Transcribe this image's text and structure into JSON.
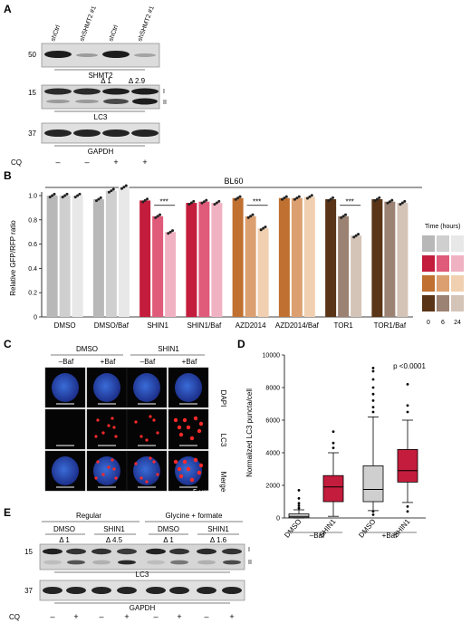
{
  "panels": {
    "A": {
      "label": "A",
      "lane_labels": [
        "shCtrl",
        "shSHMT2 #1",
        "shCtrl",
        "shSHMT2 #1"
      ],
      "marker_shmt2": "50",
      "marker_lc3": "15",
      "marker_gapdh": "37",
      "blot_shmt2": "SHMT2",
      "blot_lc3": "LC3",
      "blot_gapdh": "GAPDH",
      "delta_1": "Δ 1",
      "delta_2": "Δ 2.9",
      "band_I": "I",
      "band_II": "II",
      "cq_label": "CQ",
      "cq_signs": [
        "–",
        "–",
        "+",
        "+"
      ]
    },
    "B": {
      "label": "B",
      "header": "BL60",
      "ylabel": "Relative GFP/RFP ratio",
      "yticks": [
        "0",
        "0.2",
        "0.4",
        "0.6",
        "0.8",
        "1.0"
      ],
      "legend_title": "Time (hours)",
      "legend_ticks": [
        "0",
        "6",
        "24"
      ],
      "sig": "***",
      "chart_data": {
        "type": "bar",
        "categories": [
          "DMSO",
          "DMSO/Baf",
          "SHIN1",
          "SHIN1/Baf",
          "AZD2014",
          "AZD2014/Baf",
          "TOR1",
          "TOR1/Baf"
        ],
        "x_timepoints": [
          "0",
          "6",
          "24"
        ],
        "values": [
          [
            1.0,
            1.0,
            1.0
          ],
          [
            0.97,
            1.04,
            1.07
          ],
          [
            0.96,
            0.83,
            0.7
          ],
          [
            0.94,
            0.95,
            0.94
          ],
          [
            0.98,
            0.83,
            0.73
          ],
          [
            0.98,
            0.98,
            0.99
          ],
          [
            0.97,
            0.83,
            0.67
          ],
          [
            0.97,
            0.95,
            0.94
          ]
        ],
        "ylabel": "Relative GFP/RFP ratio",
        "ylim": [
          0,
          1.0
        ],
        "colors": [
          [
            "#b8b8b8",
            "#cfcfcf",
            "#e8e8e8"
          ],
          [
            "#b8b8b8",
            "#cfcfcf",
            "#e8e8e8"
          ],
          [
            "#c41c3c",
            "#e05a7a",
            "#f0b2c2"
          ],
          [
            "#c41c3c",
            "#e05a7a",
            "#f0b2c2"
          ],
          [
            "#c07030",
            "#dca070",
            "#f0d0b0"
          ],
          [
            "#c07030",
            "#dca070",
            "#f0d0b0"
          ],
          [
            "#5a3416",
            "#9c8272",
            "#d4c4b8"
          ],
          [
            "#5a3416",
            "#9c8272",
            "#d4c4b8"
          ]
        ]
      }
    },
    "C": {
      "label": "C",
      "group_1": "DMSO",
      "group_2": "SHIN1",
      "cols": [
        "–Baf",
        "+Baf",
        "–Baf",
        "+Baf"
      ],
      "rows": [
        "DAPI",
        "LC3",
        "Merge"
      ],
      "scale": "5 μm"
    },
    "D": {
      "label": "D",
      "ylabel": "Normalized LC3 puncta/cell",
      "yticks": [
        "0",
        "2000",
        "4000",
        "6000",
        "8000",
        "10000"
      ],
      "pvalue": "p <0.0001",
      "xlabels": [
        "DMSO",
        "SHIN1",
        "DMSO",
        "SHIN1"
      ],
      "group_labels": [
        "–Baf",
        "+Baf"
      ],
      "chart_data": {
        "type": "box",
        "categories": [
          "DMSO –Baf",
          "SHIN1 –Baf",
          "DMSO +Baf",
          "SHIN1 +Baf"
        ],
        "ylim": [
          0,
          10000
        ],
        "boxes": [
          {
            "min": 0,
            "q1": 20,
            "median": 100,
            "q3": 250,
            "max": 500,
            "outliers": [
              600,
              750,
              900,
              1200,
              1700
            ],
            "color": "#d9d9d9"
          },
          {
            "min": 100,
            "q1": 1000,
            "median": 1900,
            "q3": 2600,
            "max": 4000,
            "outliers": [
              4300,
              4600,
              5300
            ],
            "color": "#c41c3c"
          },
          {
            "min": 450,
            "q1": 1000,
            "median": 1750,
            "q3": 3200,
            "max": 6200,
            "outliers": [
              200,
              400,
              6500,
              6800,
              7200,
              7600,
              8000,
              8500,
              9000,
              9200
            ],
            "color": "#cfcfcf"
          },
          {
            "min": 950,
            "q1": 2200,
            "median": 2900,
            "q3": 4200,
            "max": 6000,
            "outliers": [
              400,
              700,
              6500,
              6900,
              8200
            ],
            "color": "#c41c3c"
          }
        ]
      }
    },
    "E": {
      "label": "E",
      "group_regular": "Regular",
      "group_glycine": "Glycine + formate",
      "treatments": [
        "DMSO",
        "SHIN1",
        "DMSO",
        "SHIN1"
      ],
      "deltas": [
        "Δ 1",
        "Δ 4.5",
        "Δ 1",
        "Δ 1.6"
      ],
      "marker_lc3": "15",
      "marker_gapdh": "37",
      "blot_lc3": "LC3",
      "blot_gapdh": "GAPDH",
      "band_I": "I",
      "band_II": "II",
      "cq_label": "CQ",
      "cq_signs": [
        "–",
        "+",
        "–",
        "+",
        "–",
        "+",
        "–",
        "+"
      ]
    }
  }
}
